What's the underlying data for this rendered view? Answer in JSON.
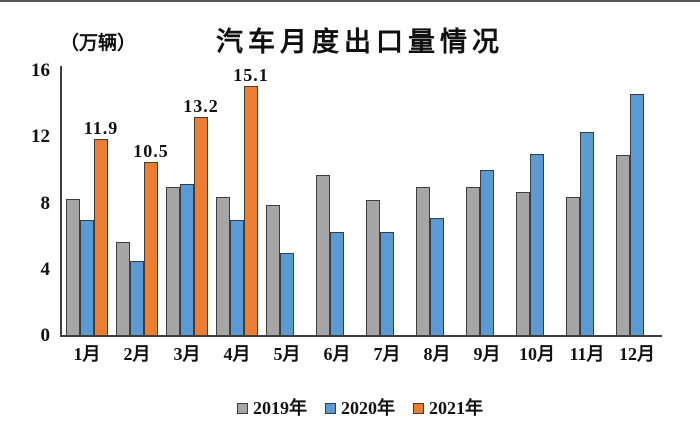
{
  "top_bar": {
    "present": true
  },
  "chart_data": {
    "type": "bar",
    "title": "汽车月度出口量情况",
    "unit_label": "（万辆）",
    "categories": [
      "1月",
      "2月",
      "3月",
      "4月",
      "5月",
      "6月",
      "7月",
      "8月",
      "9月",
      "10月",
      "11月",
      "12月"
    ],
    "series": [
      {
        "name": "2019年",
        "color": "#a6a6a6",
        "values": [
          8.3,
          5.7,
          9.0,
          8.4,
          7.9,
          9.7,
          8.2,
          9.0,
          9.0,
          8.7,
          8.4,
          10.9
        ]
      },
      {
        "name": "2020年",
        "color": "#5b9bd5",
        "values": [
          7.0,
          4.5,
          9.2,
          7.0,
          5.0,
          6.3,
          6.3,
          7.1,
          10.0,
          11.0,
          12.3,
          14.6
        ]
      },
      {
        "name": "2021年",
        "color": "#ed7d31",
        "values": [
          11.9,
          10.5,
          13.2,
          15.1,
          null,
          null,
          null,
          null,
          null,
          null,
          null,
          null
        ],
        "show_data_labels": true,
        "labels": [
          "11.9",
          "10.5",
          "13.2",
          "15.1"
        ]
      }
    ],
    "xlabel": "",
    "ylabel": "（万辆）",
    "ylim": [
      0,
      16
    ],
    "yticks": [
      0,
      4,
      8,
      12,
      16
    ],
    "grid": false,
    "legend_position": "bottom"
  },
  "colors": {
    "axis": "#3d3d3d",
    "text": "#111111",
    "bar_border": "#3d3d3d",
    "background": "#ffffff"
  }
}
